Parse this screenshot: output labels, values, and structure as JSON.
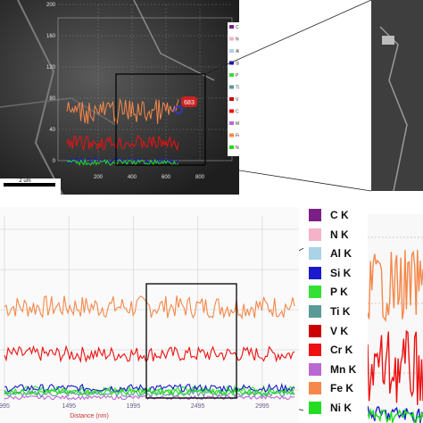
{
  "sem_image": {
    "scale_bar": "2 um",
    "marker_label": "683",
    "y_ticks": [
      "200",
      "160",
      "120",
      "80",
      "40",
      "0"
    ],
    "x_ticks": [
      "200",
      "400",
      "600",
      "800"
    ],
    "legend_visible": [
      "C",
      "N",
      "Al",
      "Si",
      "P",
      "Ti",
      "V",
      "Cr",
      "Mn",
      "Fe",
      "Ni"
    ]
  },
  "legend": {
    "items": [
      {
        "label": "C  K",
        "color": "#7b1f86"
      },
      {
        "label": "N  K",
        "color": "#f4b3c8"
      },
      {
        "label": "Al K",
        "color": "#a9d3e6"
      },
      {
        "label": "Si K",
        "color": "#1a1acc"
      },
      {
        "label": "P  K",
        "color": "#33e033"
      },
      {
        "label": "Ti K",
        "color": "#5a9a96"
      },
      {
        "label": "V  K",
        "color": "#cc0000"
      },
      {
        "label": "Cr K",
        "color": "#ee1111"
      },
      {
        "label": "Mn K",
        "color": "#b86ad0"
      },
      {
        "label": "Fe K",
        "color": "#f5884a"
      },
      {
        "label": "Ni K",
        "color": "#22dd22"
      }
    ]
  },
  "chart_data": {
    "type": "line",
    "title": "",
    "xlabel": "Distance (nm)",
    "ylabel": "",
    "x_ticks": [
      "995",
      "1495",
      "1995",
      "2495",
      "2995"
    ],
    "x_range": [
      995,
      3245
    ],
    "y_range": [
      0,
      100
    ],
    "grid": true,
    "series": [
      {
        "name": "Fe K",
        "color": "#f5884a",
        "mean": 52,
        "noise": 6
      },
      {
        "name": "Cr K",
        "color": "#ee1111",
        "mean": 27,
        "noise": 4
      },
      {
        "name": "P K",
        "color": "#33e033",
        "mean": 8,
        "noise": 2
      },
      {
        "name": "Si K",
        "color": "#1a1acc",
        "mean": 9,
        "noise": 2
      },
      {
        "name": "Ti K",
        "color": "#5a9a96",
        "mean": 6,
        "noise": 1.5
      },
      {
        "name": "Mn K",
        "color": "#b86ad0",
        "mean": 4,
        "noise": 1
      },
      {
        "name": "Ni K",
        "color": "#22dd22",
        "mean": 7,
        "noise": 1.5
      }
    ]
  }
}
